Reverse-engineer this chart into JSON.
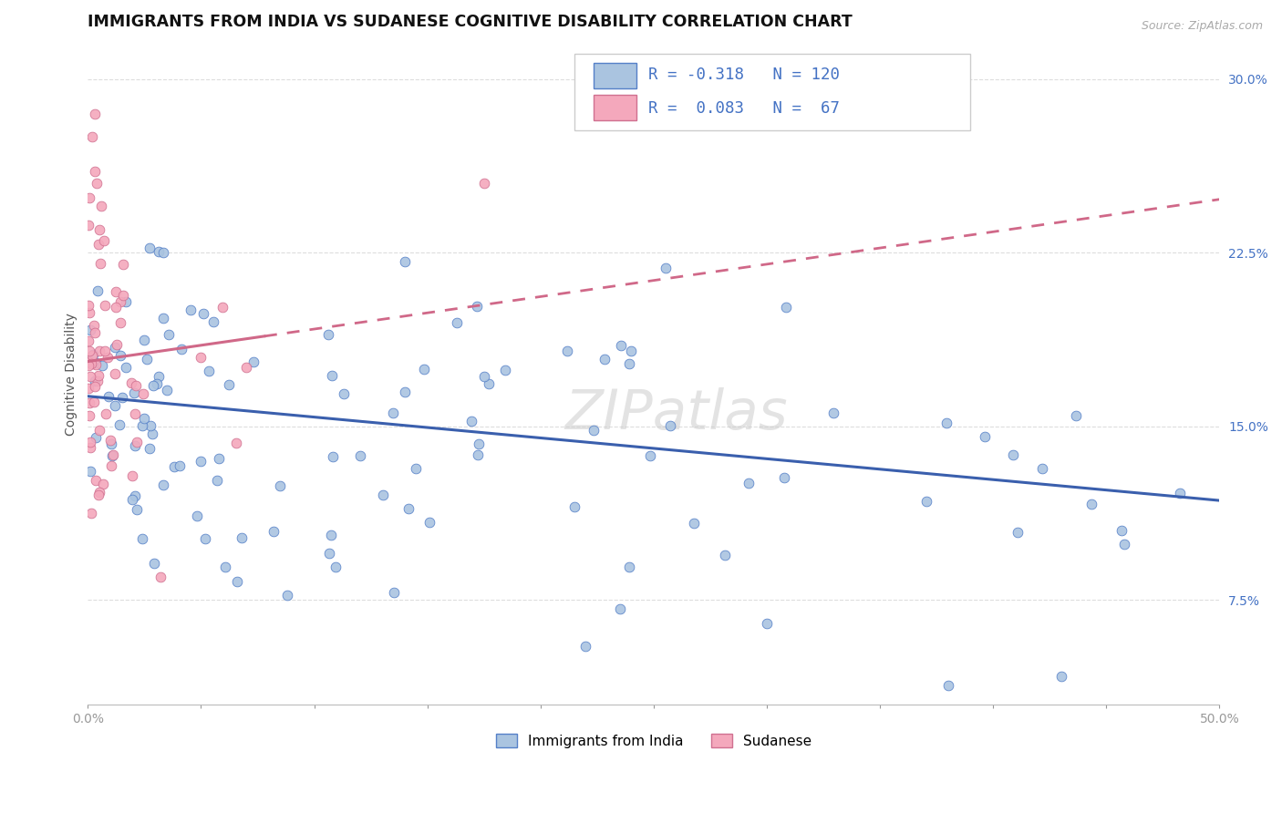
{
  "title": "IMMIGRANTS FROM INDIA VS SUDANESE COGNITIVE DISABILITY CORRELATION CHART",
  "source": "Source: ZipAtlas.com",
  "ylabel": "Cognitive Disability",
  "xlim": [
    0.0,
    0.5
  ],
  "ylim": [
    0.03,
    0.315
  ],
  "ytick_vals": [
    0.075,
    0.15,
    0.225,
    0.3
  ],
  "ytick_labels": [
    "7.5%",
    "15.0%",
    "22.5%",
    "30.0%"
  ],
  "xtick_vals": [
    0.0,
    0.05,
    0.1,
    0.15,
    0.2,
    0.25,
    0.3,
    0.35,
    0.4,
    0.45,
    0.5
  ],
  "xtick_labels": [
    "0.0%",
    "",
    "",
    "",
    "",
    "",
    "",
    "",
    "",
    "",
    "50.0%"
  ],
  "color_india": "#aac4e0",
  "color_sudan": "#f4a8bc",
  "color_india_edge": "#5580c8",
  "color_sudan_edge": "#d07090",
  "color_india_line": "#3a5fad",
  "color_sudan_line": "#d06888",
  "color_tick_right": "#4472c4",
  "background_color": "#ffffff",
  "grid_color": "#dddddd",
  "watermark": "ZIPatlas",
  "title_fontsize": 12.5,
  "axis_label_fontsize": 10,
  "tick_fontsize": 10,
  "legend_fontsize": 13,
  "india_line_start_y": 0.163,
  "india_line_end_y": 0.118,
  "sudan_line_start_y": 0.178,
  "sudan_line_end_y": 0.248
}
